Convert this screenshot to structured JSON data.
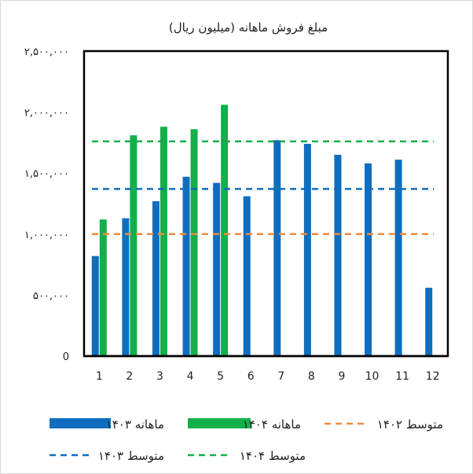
{
  "chart_data": {
    "type": "bar",
    "title": "مبلغ فروش ماهانه (میلیون ریال)",
    "categories": [
      "1",
      "2",
      "3",
      "4",
      "5",
      "6",
      "7",
      "8",
      "9",
      "10",
      "11",
      "12"
    ],
    "ylim": [
      0,
      2500000
    ],
    "yticks": [
      0,
      500000,
      1000000,
      1500000,
      2000000,
      2500000
    ],
    "ytick_labels": [
      "0",
      "۵۰۰,۰۰۰",
      "۱,۰۰۰,۰۰۰",
      "۱,۵۰۰,۰۰۰",
      "۲,۰۰۰,۰۰۰",
      "۲,۵۰۰,۰۰۰"
    ],
    "grid": false,
    "legend_position": "bottom",
    "series": [
      {
        "name": "ماهانه ۱۴۰۳",
        "color": "#0e6ebd",
        "values": [
          820000,
          1130000,
          1270000,
          1470000,
          1420000,
          1310000,
          1770000,
          1740000,
          1650000,
          1580000,
          1610000,
          560000
        ]
      },
      {
        "name": "ماهانه ۱۴۰۴",
        "color": "#11b04b",
        "values": [
          1120000,
          1810000,
          1880000,
          1860000,
          2060000,
          0,
          0,
          0,
          0,
          0,
          0,
          0
        ]
      }
    ],
    "reference_lines": [
      {
        "name": "متوسط ۱۴۰۲",
        "color": "#ee8a3c",
        "value": 1000000
      },
      {
        "name": "متوسط ۱۴۰۳",
        "color": "#0e6ebd",
        "value": 1370000
      },
      {
        "name": "متوسط ۱۴۰۴",
        "color": "#11b04b",
        "value": 1760000
      }
    ]
  }
}
